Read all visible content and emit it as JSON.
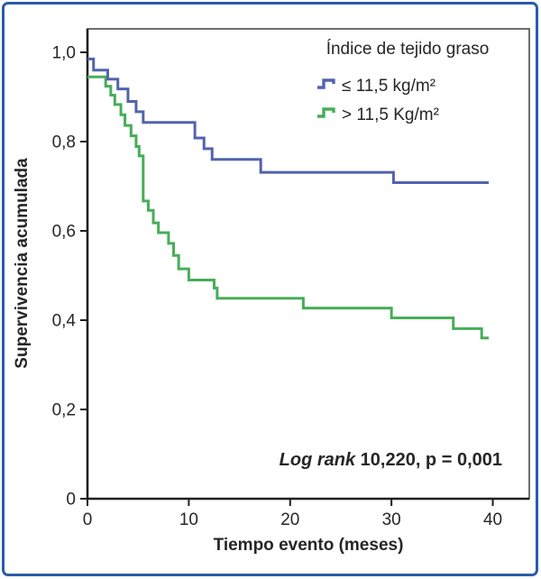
{
  "figure": {
    "border_color": "#2a5ca8",
    "background": "#ffffff",
    "axis_color": "#2f2f2f",
    "box_color": "#4a4a4a"
  },
  "chart_data": {
    "type": "line",
    "subtype": "kaplan-meier-step-survival",
    "title": "",
    "xlabel": "Tiempo evento (meses)",
    "ylabel": "Supervivencia acumulada",
    "xlim": [
      0,
      43.6
    ],
    "ylim": [
      0,
      1.053
    ],
    "grid": false,
    "x_ticks": {
      "values": [
        0,
        10,
        20,
        30,
        40
      ],
      "labels": [
        "0",
        "10",
        "20",
        "30",
        "40"
      ]
    },
    "y_ticks": {
      "values": [
        1.0,
        0.8,
        0.6,
        0.4,
        0.2,
        0
      ],
      "labels": [
        "1,0",
        "0,8",
        "0,6",
        "0,4",
        "0,2",
        "0"
      ]
    },
    "legend": {
      "title": "Índice de tejido graso",
      "position": "top-right"
    },
    "annotation": {
      "italic_part": "Log rank",
      "rest_part": " 10,220, p = 0,001"
    },
    "series": [
      {
        "name": "≤ 11,5 kg/m²",
        "color": "#5263ae",
        "end_t": 39.6,
        "steps": [
          [
            0,
            0.985
          ],
          [
            0.6,
            0.96
          ],
          [
            2.0,
            0.94
          ],
          [
            3.0,
            0.918
          ],
          [
            4.0,
            0.89
          ],
          [
            4.8,
            0.867
          ],
          [
            5.5,
            0.843
          ],
          [
            10.6,
            0.808
          ],
          [
            11.5,
            0.784
          ],
          [
            12.3,
            0.76
          ],
          [
            17.1,
            0.731
          ],
          [
            30.2,
            0.708
          ]
        ]
      },
      {
        "name": "> 11,5 Kg/m²",
        "color": "#47ad59",
        "end_t": 39.6,
        "steps": [
          [
            0,
            0.945
          ],
          [
            1.8,
            0.924
          ],
          [
            2.3,
            0.904
          ],
          [
            2.7,
            0.883
          ],
          [
            3.3,
            0.86
          ],
          [
            3.7,
            0.836
          ],
          [
            4.3,
            0.813
          ],
          [
            4.8,
            0.789
          ],
          [
            5.1,
            0.768
          ],
          [
            5.5,
            0.667
          ],
          [
            6.0,
            0.646
          ],
          [
            6.5,
            0.618
          ],
          [
            7.0,
            0.596
          ],
          [
            8.0,
            0.572
          ],
          [
            8.5,
            0.545
          ],
          [
            9.0,
            0.515
          ],
          [
            10.0,
            0.49
          ],
          [
            12.5,
            0.472
          ],
          [
            12.8,
            0.449
          ],
          [
            21.3,
            0.427
          ],
          [
            30.0,
            0.405
          ],
          [
            36.1,
            0.381
          ],
          [
            38.9,
            0.36
          ]
        ]
      }
    ]
  }
}
